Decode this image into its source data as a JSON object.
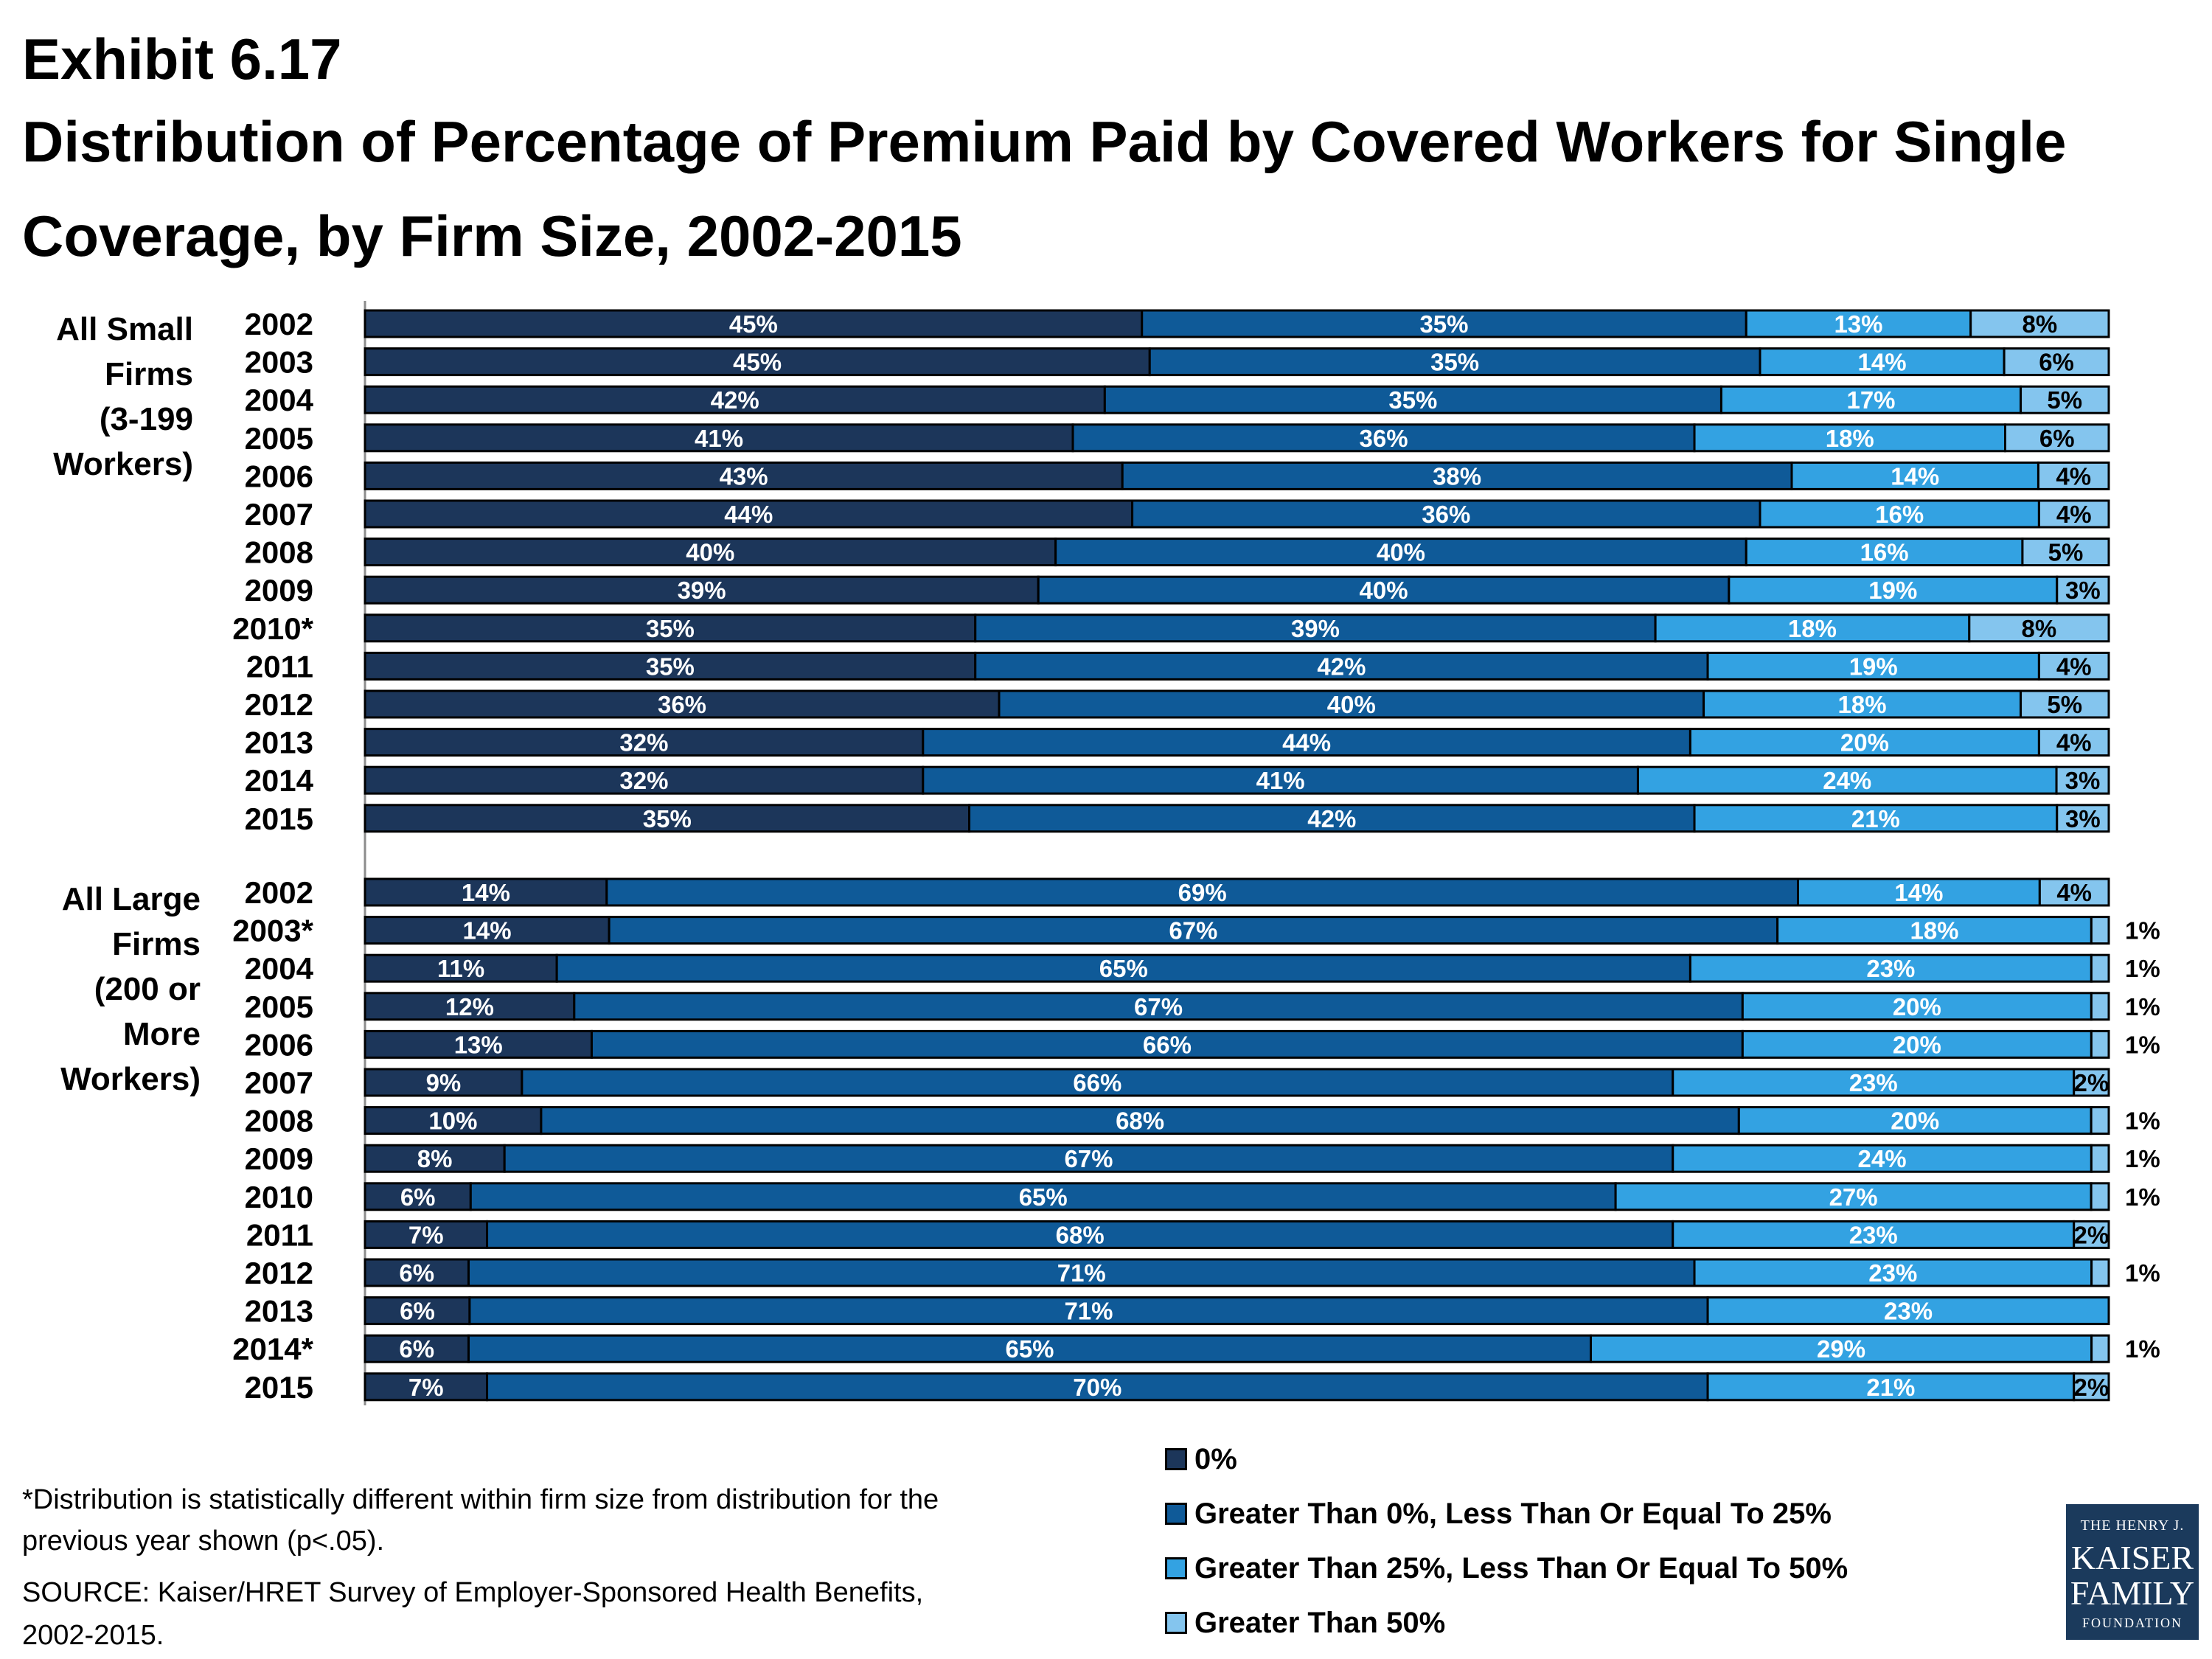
{
  "chart_data": {
    "type": "bar",
    "orientation": "horizontal",
    "stacked": true,
    "exhibit": "Exhibit 6.17",
    "title": "Distribution of Percentage of Premium Paid by Covered Workers for Single Coverage, by Firm Size, 2002-2015",
    "xlim": [
      0,
      100
    ],
    "grid": false,
    "legend_position": "bottom-right",
    "legend": [
      {
        "label": "0%",
        "color": "#1c365a"
      },
      {
        "label": "Greater Than 0%, Less Than Or Equal To 25%",
        "color": "#0f5a98"
      },
      {
        "label": "Greater Than 25%, Less Than Or Equal To 50%",
        "color": "#33a2e2"
      },
      {
        "label": "Greater Than 50%",
        "color": "#84c5ee"
      }
    ],
    "groups": [
      {
        "label_lines": [
          "All Small",
          "Firms",
          "(3-199",
          "Workers)"
        ],
        "rows": [
          {
            "year": "2002",
            "values": [
              45,
              35,
              13,
              8
            ],
            "labels": [
              "45%",
              "35%",
              "13%",
              "8%"
            ]
          },
          {
            "year": "2003",
            "values": [
              45,
              35,
              14,
              6
            ],
            "labels": [
              "45%",
              "35%",
              "14%",
              "6%"
            ]
          },
          {
            "year": "2004",
            "values": [
              42,
              35,
              17,
              5
            ],
            "labels": [
              "42%",
              "35%",
              "17%",
              "5%"
            ]
          },
          {
            "year": "2005",
            "values": [
              41,
              36,
              18,
              6
            ],
            "labels": [
              "41%",
              "36%",
              "18%",
              "6%"
            ]
          },
          {
            "year": "2006",
            "values": [
              43,
              38,
              14,
              4
            ],
            "labels": [
              "43%",
              "38%",
              "14%",
              "4%"
            ]
          },
          {
            "year": "2007",
            "values": [
              44,
              36,
              16,
              4
            ],
            "labels": [
              "44%",
              "36%",
              "16%",
              "4%"
            ]
          },
          {
            "year": "2008",
            "values": [
              40,
              40,
              16,
              5
            ],
            "labels": [
              "40%",
              "40%",
              "16%",
              "5%"
            ]
          },
          {
            "year": "2009",
            "values": [
              39,
              40,
              19,
              3
            ],
            "labels": [
              "39%",
              "40%",
              "19%",
              "3%"
            ]
          },
          {
            "year": "2010*",
            "values": [
              35,
              39,
              18,
              8
            ],
            "labels": [
              "35%",
              "39%",
              "18%",
              "8%"
            ]
          },
          {
            "year": "2011",
            "values": [
              35,
              42,
              19,
              4
            ],
            "labels": [
              "35%",
              "42%",
              "19%",
              "4%"
            ]
          },
          {
            "year": "2012",
            "values": [
              36,
              40,
              18,
              5
            ],
            "labels": [
              "36%",
              "40%",
              "18%",
              "5%"
            ]
          },
          {
            "year": "2013",
            "values": [
              32,
              44,
              20,
              4
            ],
            "labels": [
              "32%",
              "44%",
              "20%",
              "4%"
            ]
          },
          {
            "year": "2014",
            "values": [
              32,
              41,
              24,
              3
            ],
            "labels": [
              "32%",
              "41%",
              "24%",
              "3%"
            ]
          },
          {
            "year": "2015",
            "values": [
              35,
              42,
              21,
              3
            ],
            "labels": [
              "35%",
              "42%",
              "21%",
              "3%"
            ]
          }
        ]
      },
      {
        "label_lines": [
          "All Large",
          "Firms",
          "(200 or",
          "More",
          "Workers)"
        ],
        "rows": [
          {
            "year": "2002",
            "values": [
              14,
              69,
              14,
              4
            ],
            "labels": [
              "14%",
              "69%",
              "14%",
              "4%"
            ]
          },
          {
            "year": "2003*",
            "values": [
              14,
              67,
              18,
              1
            ],
            "labels": [
              "14%",
              "67%",
              "18%",
              "1%"
            ]
          },
          {
            "year": "2004",
            "values": [
              11,
              65,
              23,
              1
            ],
            "labels": [
              "11%",
              "65%",
              "23%",
              "1%"
            ]
          },
          {
            "year": "2005",
            "values": [
              12,
              67,
              20,
              1
            ],
            "labels": [
              "12%",
              "67%",
              "20%",
              "1%"
            ]
          },
          {
            "year": "2006",
            "values": [
              13,
              66,
              20,
              1
            ],
            "labels": [
              "13%",
              "66%",
              "20%",
              "1%"
            ]
          },
          {
            "year": "2007",
            "values": [
              9,
              66,
              23,
              2
            ],
            "labels": [
              "9%",
              "66%",
              "23%",
              "2%"
            ]
          },
          {
            "year": "2008",
            "values": [
              10,
              68,
              20,
              1
            ],
            "labels": [
              "10%",
              "68%",
              "20%",
              "1%"
            ]
          },
          {
            "year": "2009",
            "values": [
              8,
              67,
              24,
              1
            ],
            "labels": [
              "8%",
              "67%",
              "24%",
              "1%"
            ]
          },
          {
            "year": "2010",
            "values": [
              6,
              65,
              27,
              1
            ],
            "labels": [
              "6%",
              "65%",
              "27%",
              "1%"
            ]
          },
          {
            "year": "2011",
            "values": [
              7,
              68,
              23,
              2
            ],
            "labels": [
              "7%",
              "68%",
              "23%",
              "2%"
            ]
          },
          {
            "year": "2012",
            "values": [
              6,
              71,
              23,
              1
            ],
            "labels": [
              "6%",
              "71%",
              "23%",
              "1%"
            ]
          },
          {
            "year": "2013",
            "values": [
              6,
              71,
              23,
              0
            ],
            "labels": [
              "6%",
              "71%",
              "23%",
              ""
            ]
          },
          {
            "year": "2014*",
            "values": [
              6,
              65,
              29,
              1
            ],
            "labels": [
              "6%",
              "65%",
              "29%",
              "1%"
            ]
          },
          {
            "year": "2015",
            "values": [
              7,
              70,
              21,
              2
            ],
            "labels": [
              "7%",
              "70%",
              "21%",
              "2%"
            ]
          }
        ]
      }
    ]
  },
  "footnote": "*Distribution is statistically different within firm size from distribution for the previous year shown (p<.05).",
  "source": "SOURCE:  Kaiser/HRET Survey of Employer-Sponsored Health Benefits, 2002-2015.",
  "logo": {
    "line1": "THE HENRY J.",
    "line2": "KAISER",
    "line3": "FAMILY",
    "line4": "FOUNDATION"
  }
}
